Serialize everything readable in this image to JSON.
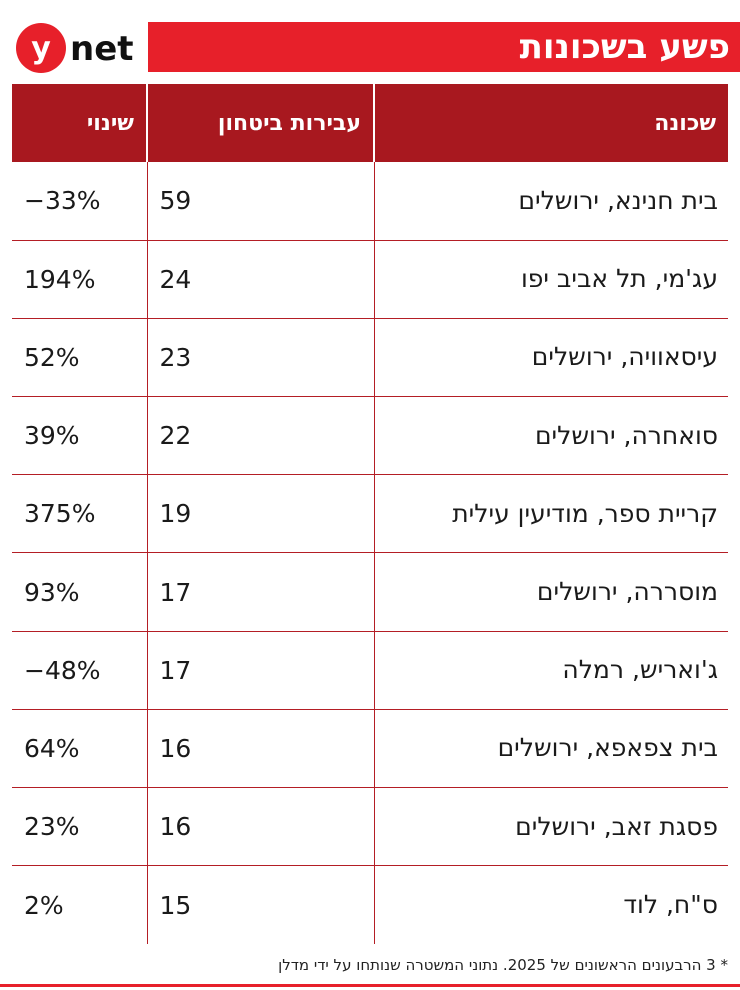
{
  "brand": {
    "logo_text": "ynet",
    "accent_color": "#e7202a",
    "header_color": "#a8181f"
  },
  "title": "פשע בשכונות",
  "chart_data": {
    "type": "table",
    "columns": [
      "שכונה",
      "עבירות ביטחון",
      "שינוי"
    ],
    "rows": [
      {
        "name": "בית חנינא, ירושלים",
        "value": "59",
        "change": "−33%"
      },
      {
        "name": "עג'מי, תל אביב יפו",
        "value": "24",
        "change": "194%"
      },
      {
        "name": "עיסאוויה, ירושלים",
        "value": "23",
        "change": "52%"
      },
      {
        "name": "סואחרה, ירושלים",
        "value": "22",
        "change": "39%"
      },
      {
        "name": "קריית ספר, מודיעין עילית",
        "value": "19",
        "change": "375%"
      },
      {
        "name": "מוסררה, ירושלים",
        "value": "17",
        "change": "93%"
      },
      {
        "name": "ג'ואריש, רמלה",
        "value": "17",
        "change": "−48%"
      },
      {
        "name": "בית צפאפא, ירושלים",
        "value": "16",
        "change": "64%"
      },
      {
        "name": "פסגת זאב, ירושלים",
        "value": "16",
        "change": "23%"
      },
      {
        "name": "ס\"ח, לוד",
        "value": "15",
        "change": "2%"
      }
    ]
  },
  "footnote": "* 3 הרבעונים הראשונים של 2025. נתוני המשטרה שנותחו על ידי מדלן"
}
